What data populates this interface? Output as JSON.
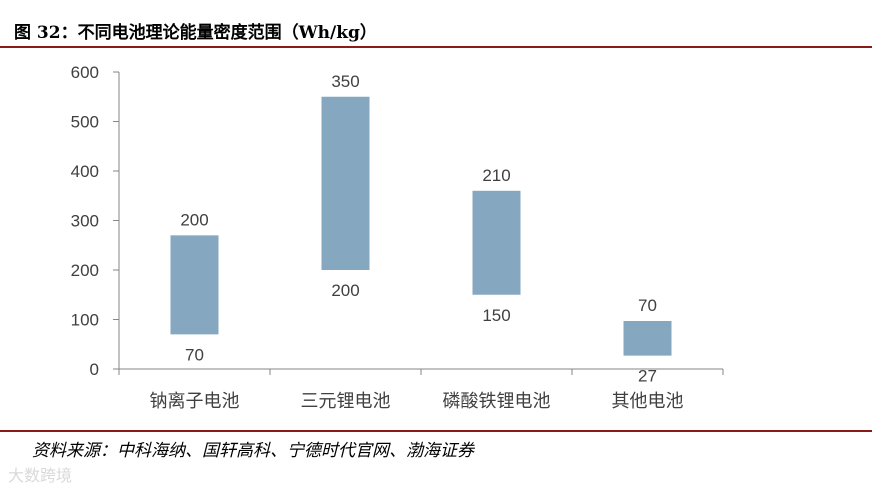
{
  "figure": {
    "title": "图 32：不同电池理论能量密度范围（Wh/kg）",
    "source": "资料来源：中科海纳、国轩高科、宁德时代官网、渤海证券",
    "watermark": "大数跨境"
  },
  "chart_data": {
    "type": "bar",
    "subtype": "floating-range",
    "title": "不同电池理论能量密度范围（Wh/kg）",
    "xlabel": "",
    "ylabel": "",
    "ylim": [
      0,
      600
    ],
    "yticks": [
      0,
      100,
      200,
      300,
      400,
      500,
      600
    ],
    "grid": false,
    "bar_color": "#86a7c0",
    "categories": [
      "钠离子电池",
      "三元锂电池",
      "磷酸铁锂电池",
      "其他电池"
    ],
    "series": [
      {
        "low": [
          70,
          200,
          150,
          27
        ],
        "high": [
          270,
          550,
          360,
          97
        ],
        "low_labels": [
          "70",
          "200",
          "150",
          "27"
        ],
        "range_labels": [
          "200",
          "350",
          "210",
          "70"
        ]
      }
    ]
  }
}
